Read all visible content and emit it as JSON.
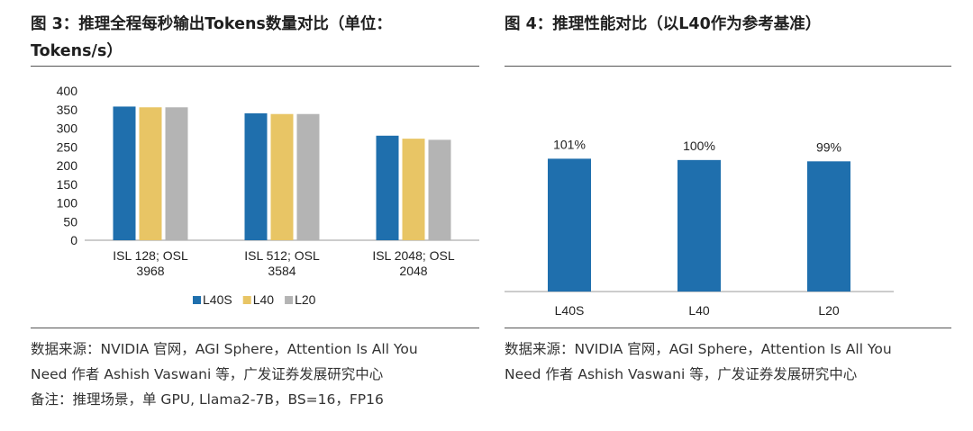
{
  "left": {
    "title_line1": "图 3：推理全程每秒输出Tokens数量对比（单位：",
    "title_line2": "Tokens/s）",
    "source_line1": "数据来源：NVIDIA 官网，AGI Sphere，Attention Is All You",
    "source_line2": "Need 作者 Ashish Vaswani 等，广发证券发展研究中心",
    "note_line": "备注：推理场景，单 GPU, Llama2-7B，BS=16，FP16"
  },
  "right": {
    "title_line1": "图 4：推理性能对比（以L40作为参考基准）",
    "source_line1": "数据来源：NVIDIA 官网，AGI Sphere，Attention Is All You",
    "source_line2": "Need 作者 Ashish Vaswani 等，广发证券发展研究中心"
  },
  "chart_data": [
    {
      "type": "bar",
      "categories": [
        [
          "ISL 128; OSL",
          "3968"
        ],
        [
          "ISL 512; OSL",
          "3584"
        ],
        [
          "ISL 2048; OSL",
          "2048"
        ]
      ],
      "series": [
        {
          "name": "L40S",
          "color": "#1f6fad",
          "values": [
            358,
            340,
            280
          ]
        },
        {
          "name": "L40",
          "color": "#e8c565",
          "values": [
            356,
            338,
            272
          ]
        },
        {
          "name": "L20",
          "color": "#b4b4b4",
          "values": [
            356,
            338,
            269
          ]
        }
      ],
      "yticks": [
        "0",
        "50",
        "100",
        "150",
        "200",
        "250",
        "300",
        "350",
        "400"
      ],
      "ylim": [
        0,
        400
      ],
      "legend": "bottom"
    },
    {
      "type": "bar",
      "categories": [
        "L40S",
        "L40",
        "L20"
      ],
      "values": [
        101,
        100,
        99
      ],
      "data_labels": [
        "101%",
        "100%",
        "99%"
      ],
      "color": "#1f6fad",
      "ylim": [
        0,
        130
      ]
    }
  ]
}
